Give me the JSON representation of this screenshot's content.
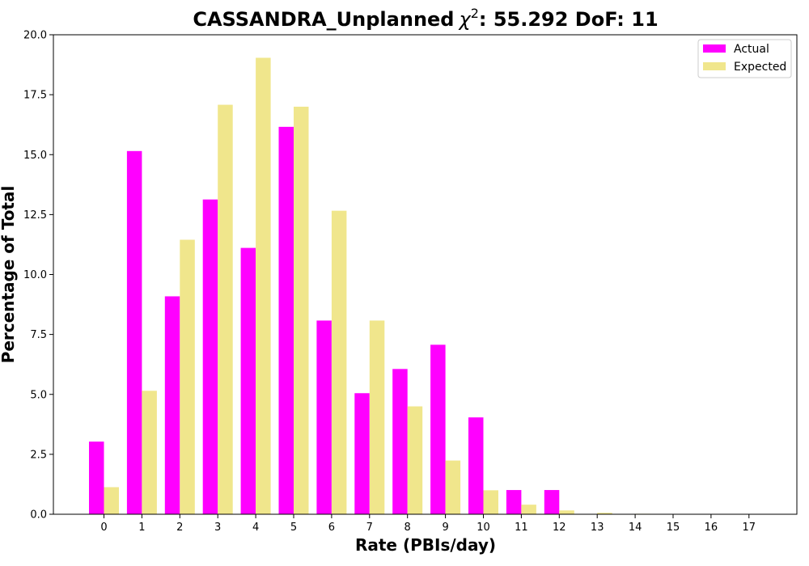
{
  "chart_data": {
    "type": "bar",
    "title": "CASSANDRA_Unplanned",
    "title_chi": "χ",
    "title_sup": "2",
    "title_rest": ": 55.292 DoF: 11",
    "xlabel": "Rate (PBIs/day)",
    "ylabel": "Percentage of Total",
    "ylim": [
      0,
      20
    ],
    "yticks": [
      "0.0",
      "2.5",
      "5.0",
      "7.5",
      "10.0",
      "12.5",
      "15.0",
      "17.5",
      "20.0"
    ],
    "categories": [
      "0",
      "1",
      "2",
      "3",
      "4",
      "5",
      "6",
      "7",
      "8",
      "9",
      "10",
      "11",
      "12",
      "13",
      "14",
      "15",
      "16",
      "17"
    ],
    "series": [
      {
        "name": "Actual",
        "color": "#ff00ff",
        "values": [
          3.03,
          15.15,
          9.09,
          13.13,
          11.11,
          16.16,
          8.08,
          5.05,
          6.06,
          7.07,
          4.04,
          1.01,
          1.01,
          0,
          0,
          0,
          0,
          0
        ]
      },
      {
        "name": "Expected",
        "color": "#f0e68c",
        "values": [
          1.13,
          5.15,
          11.45,
          17.08,
          19.04,
          17.0,
          12.66,
          8.08,
          4.5,
          2.24,
          1.0,
          0.4,
          0.16,
          0.06,
          0.02,
          0.005,
          0.002,
          0.001
        ]
      }
    ],
    "legend_position": "top-right",
    "grid": false
  }
}
